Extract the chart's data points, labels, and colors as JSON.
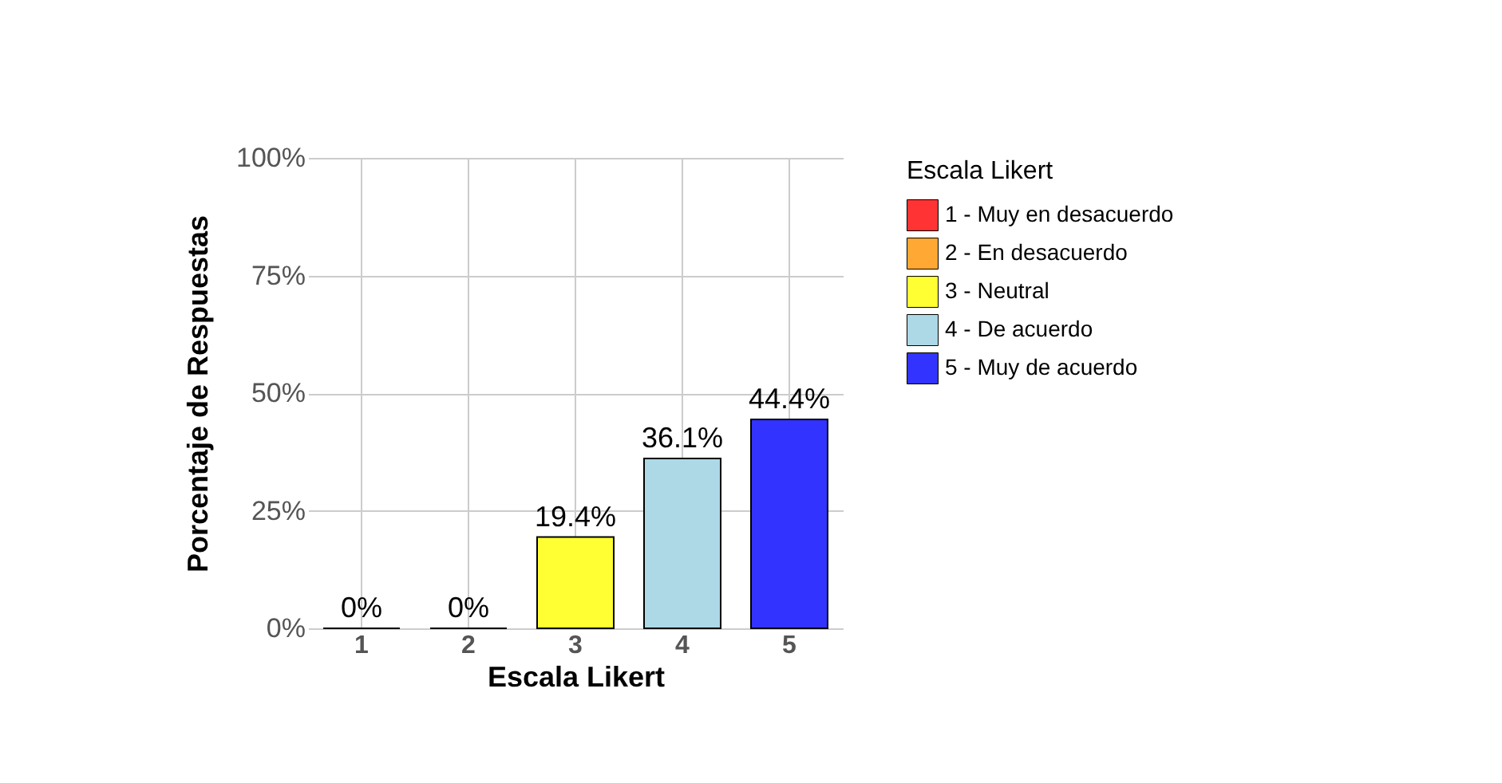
{
  "chart_data": {
    "type": "bar",
    "xlabel": "Escala Likert",
    "ylabel": "Porcentaje de Respuestas",
    "legend_title": "Escala Likert",
    "categories": [
      "1",
      "2",
      "3",
      "4",
      "5"
    ],
    "series": [
      {
        "name": "1 - Muy en desacuerdo",
        "color": "#ff3333",
        "values": [
          0,
          null,
          null,
          null,
          null
        ],
        "value_labels": [
          "0%",
          null,
          null,
          null,
          null
        ]
      },
      {
        "name": "2 - En desacuerdo",
        "color": "#ffa833",
        "values": [
          null,
          0,
          null,
          null,
          null
        ],
        "value_labels": [
          null,
          "0%",
          null,
          null,
          null
        ]
      },
      {
        "name": "3 - Neutral",
        "color": "#ffff33",
        "values": [
          null,
          null,
          19.4,
          null,
          null
        ],
        "value_labels": [
          null,
          null,
          "19.4%",
          null,
          null
        ]
      },
      {
        "name": "4 - De acuerdo",
        "color": "#add8e6",
        "values": [
          null,
          null,
          null,
          36.1,
          null
        ],
        "value_labels": [
          null,
          null,
          null,
          "36.1%",
          null
        ]
      },
      {
        "name": "5 - Muy de acuerdo",
        "color": "#3333ff",
        "values": [
          null,
          null,
          null,
          null,
          44.4
        ],
        "value_labels": [
          null,
          null,
          null,
          null,
          "44.4%"
        ]
      }
    ],
    "ylim": [
      0,
      100
    ],
    "yticks": [
      {
        "value": 0,
        "label": "0%"
      },
      {
        "value": 25,
        "label": "25%"
      },
      {
        "value": 50,
        "label": "50%"
      },
      {
        "value": 75,
        "label": "75%"
      },
      {
        "value": 100,
        "label": "100%"
      }
    ],
    "grid": true,
    "legend": "right"
  }
}
